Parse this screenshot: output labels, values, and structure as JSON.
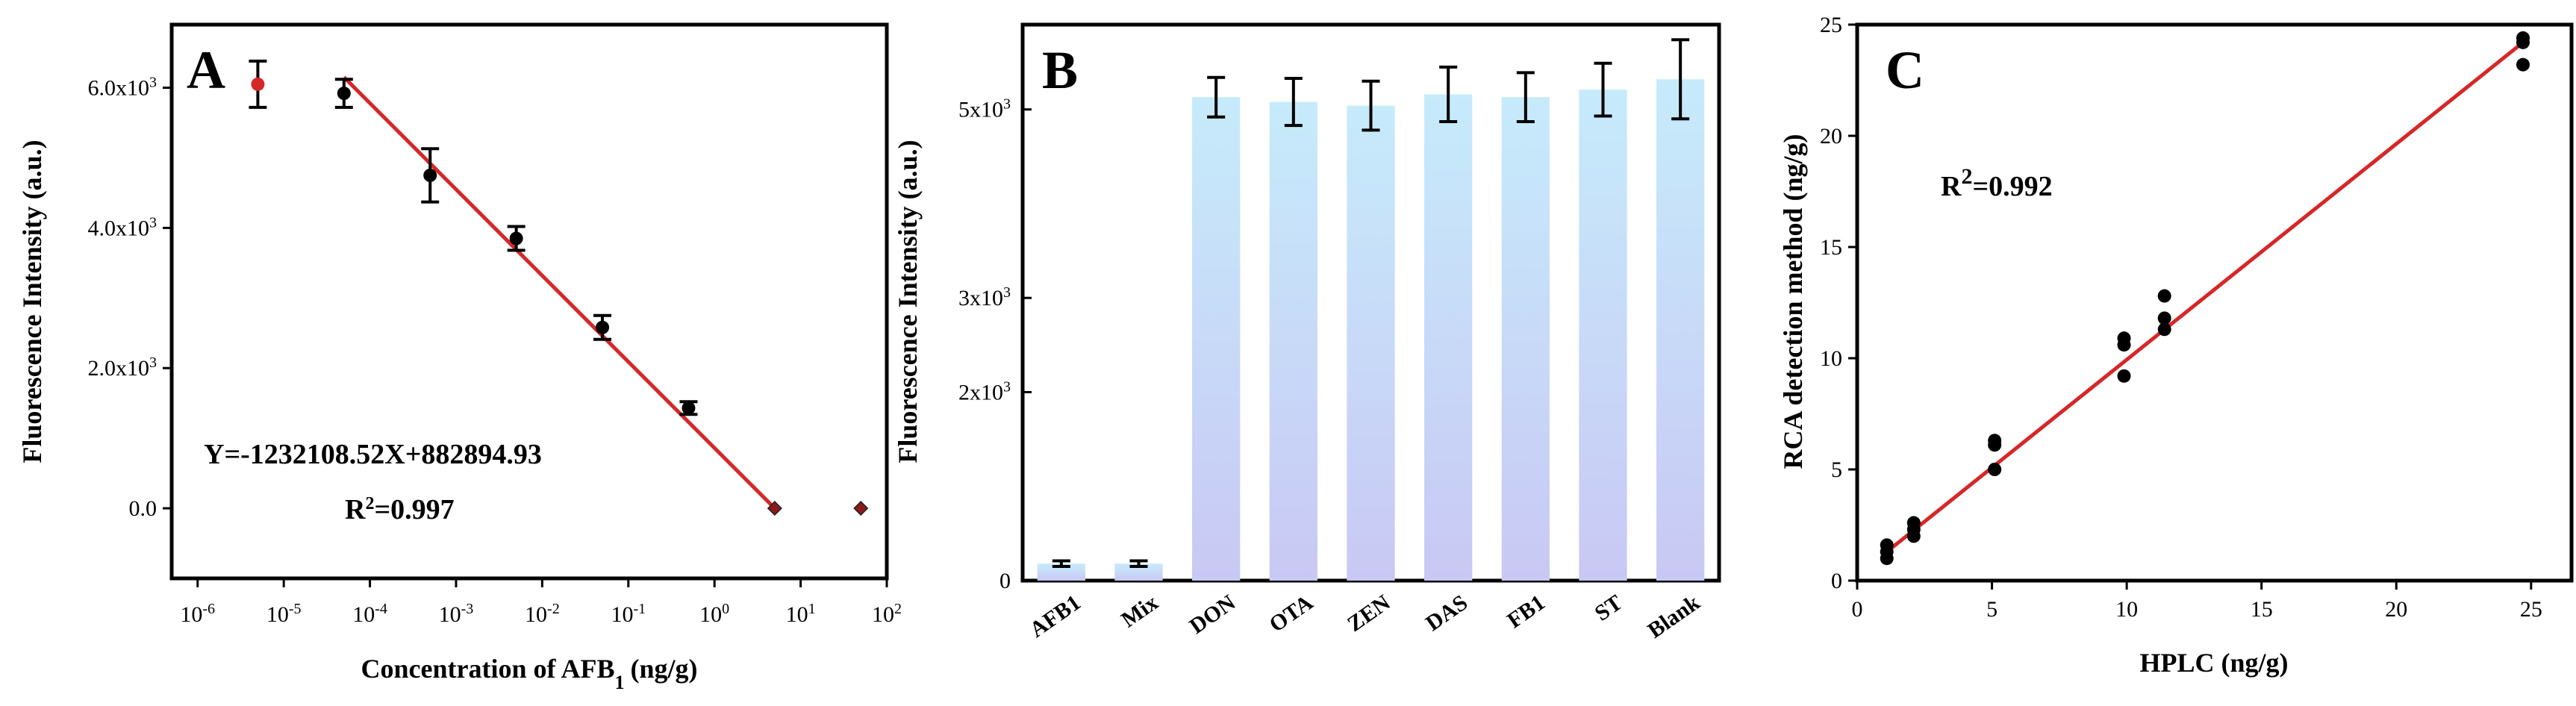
{
  "chart_data": [
    {
      "panel": "A",
      "type": "scatter",
      "xscale": "log",
      "xlim": [
        5e-07,
        100
      ],
      "ylim": [
        -1000,
        6900
      ],
      "xlabel_main": "Concentration of AFB",
      "xlabel_sub": "1",
      "xlabel_unit": "(ng/g)",
      "ylabel": "Fluorescence Intensity (a.u.)",
      "x_ticks": [
        {
          "value": 1e-06,
          "base": "10",
          "exp": "-6"
        },
        {
          "value": 1e-05,
          "base": "10",
          "exp": "-5"
        },
        {
          "value": 0.0001,
          "base": "10",
          "exp": "-4"
        },
        {
          "value": 0.001,
          "base": "10",
          "exp": "-3"
        },
        {
          "value": 0.01,
          "base": "10",
          "exp": "-2"
        },
        {
          "value": 0.1,
          "base": "10",
          "exp": "-1"
        },
        {
          "value": 1,
          "base": "10",
          "exp": "0"
        },
        {
          "value": 10,
          "base": "10",
          "exp": "1"
        },
        {
          "value": 100,
          "base": "10",
          "exp": "2"
        }
      ],
      "y_ticks": [
        {
          "value": 0,
          "label": "0.0",
          "exp": ""
        },
        {
          "value": 2000,
          "label": "2.0x10",
          "exp": "3"
        },
        {
          "value": 4000,
          "label": "4.0x10",
          "exp": "3"
        },
        {
          "value": 6000,
          "label": "6.0x10",
          "exp": "3"
        }
      ],
      "points": [
        {
          "x": 5e-06,
          "y": 6050,
          "err": 330,
          "color": "#d62728"
        },
        {
          "x": 5e-05,
          "y": 5920,
          "err": 200,
          "color": "#000000"
        },
        {
          "x": 0.0005,
          "y": 4750,
          "err": 380,
          "color": "#000000"
        },
        {
          "x": 0.005,
          "y": 3850,
          "err": 170,
          "color": "#000000"
        },
        {
          "x": 0.05,
          "y": 2580,
          "err": 170,
          "color": "#000000"
        },
        {
          "x": 0.5,
          "y": 1430,
          "err": 90,
          "color": "#000000"
        },
        {
          "x": 5,
          "y": 0,
          "err": 0,
          "color": "#8b1a1a"
        },
        {
          "x": 50,
          "y": 0,
          "err": 0,
          "color": "#8b1a1a"
        }
      ],
      "fit": {
        "x": [
          5e-05,
          5
        ],
        "y": [
          6150,
          0
        ],
        "color": "#d62728"
      },
      "equation": "Y=-1232108.52X+882894.93",
      "r2_label": "R",
      "r2_exp": "2",
      "r2_value": "=0.997"
    },
    {
      "panel": "B",
      "type": "bar",
      "categories": [
        "AFB1",
        "Mix",
        "DON",
        "OTA",
        "ZEN",
        "DAS",
        "FB1",
        "ST",
        "Blank"
      ],
      "values": [
        180,
        180,
        5130,
        5080,
        5040,
        5160,
        5130,
        5210,
        5320
      ],
      "errors": [
        30,
        30,
        210,
        250,
        260,
        290,
        260,
        280,
        420
      ],
      "ylim": [
        0,
        5900
      ],
      "ylabel": "Fluorescence Intensity (a.u.)",
      "y_ticks": [
        {
          "value": 0,
          "label": "0",
          "exp": ""
        },
        {
          "value": 2000,
          "label": "2x10",
          "exp": "3"
        },
        {
          "value": 3000,
          "label": "3x10",
          "exp": "3"
        },
        {
          "value": 5000,
          "label": "5x10",
          "exp": "3"
        }
      ],
      "bar_color_top": "#c6ebfb",
      "bar_color_bottom": "#c9c8f4"
    },
    {
      "panel": "C",
      "type": "scatter",
      "xlim": [
        0,
        26.5
      ],
      "ylim": [
        0,
        25
      ],
      "xlabel": "HPLC (ng/g)",
      "ylabel": "RCA detection method (ng/g)",
      "x_ticks": [
        "0",
        "5",
        "10",
        "15",
        "20",
        "25"
      ],
      "y_ticks": [
        "0",
        "5",
        "10",
        "15",
        "20",
        "25"
      ],
      "x": [
        1.1,
        1.1,
        1.1,
        2.1,
        2.1,
        2.1,
        5.1,
        5.1,
        5.1,
        9.9,
        9.9,
        9.9,
        11.4,
        11.4,
        11.4,
        24.7,
        24.7,
        24.7
      ],
      "y": [
        1.0,
        1.3,
        1.6,
        2.0,
        2.3,
        2.6,
        5.0,
        6.1,
        6.3,
        9.2,
        10.6,
        10.9,
        11.3,
        11.8,
        12.8,
        23.2,
        24.2,
        24.4
      ],
      "fit": {
        "x": [
          1.0,
          24.7
        ],
        "y": [
          1.2,
          24.2
        ],
        "color": "#d62728"
      },
      "r2_label": "R",
      "r2_exp": "2",
      "r2_value": "=0.992"
    }
  ]
}
